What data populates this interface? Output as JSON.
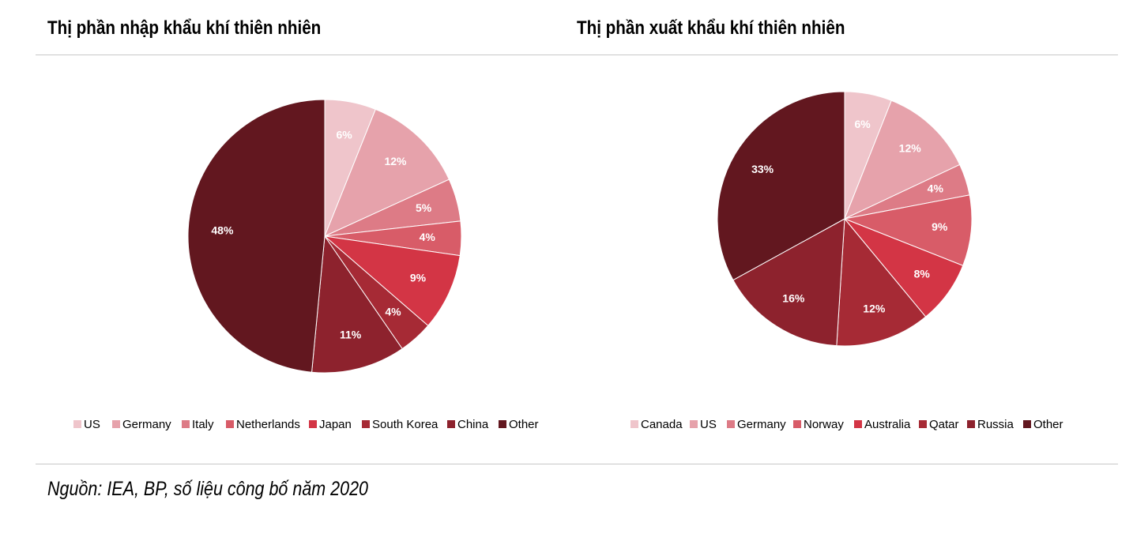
{
  "charts": {
    "left_title": "Thị phần nhập khẩu khí thiên nhiên",
    "right_title": "Thị phần xuất khẩu khí thiên nhiên"
  },
  "source": "Nguồn: IEA, BP, số liệu công bố năm 2020",
  "chart_data": [
    {
      "type": "pie",
      "title": "Thị phần nhập khẩu khí thiên nhiên",
      "categories": [
        "US",
        "Germany",
        "Italy",
        "Netherlands",
        "Japan",
        "South Korea",
        "China",
        "Other"
      ],
      "values": [
        6,
        12,
        5,
        4,
        9,
        4,
        11,
        48
      ],
      "labels": [
        "6%",
        "12%",
        "5%",
        "4%",
        "9%",
        "4%",
        "11%",
        "48%"
      ],
      "colors": [
        "#efc5cb",
        "#e6a2ab",
        "#dd7b86",
        "#d85c68",
        "#d33545",
        "#a62a35",
        "#8d222d",
        "#62171f"
      ],
      "legend": "bottom",
      "start": "top",
      "direction": "clockwise"
    },
    {
      "type": "pie",
      "title": "Thị phần xuất khẩu khí thiên nhiên",
      "categories": [
        "Canada",
        "US",
        "Germany",
        "Norway",
        "Australia",
        "Qatar",
        "Russia",
        "Other"
      ],
      "values": [
        6,
        12,
        4,
        9,
        8,
        12,
        16,
        33
      ],
      "labels": [
        "6%",
        "12%",
        "4%",
        "9%",
        "8%",
        "12%",
        "16%",
        "33%"
      ],
      "colors": [
        "#efc5cb",
        "#e6a2ab",
        "#dd7b86",
        "#d85c68",
        "#d33545",
        "#a62a35",
        "#8d222d",
        "#62171f"
      ],
      "legend": "bottom",
      "start": "top",
      "direction": "clockwise"
    }
  ]
}
